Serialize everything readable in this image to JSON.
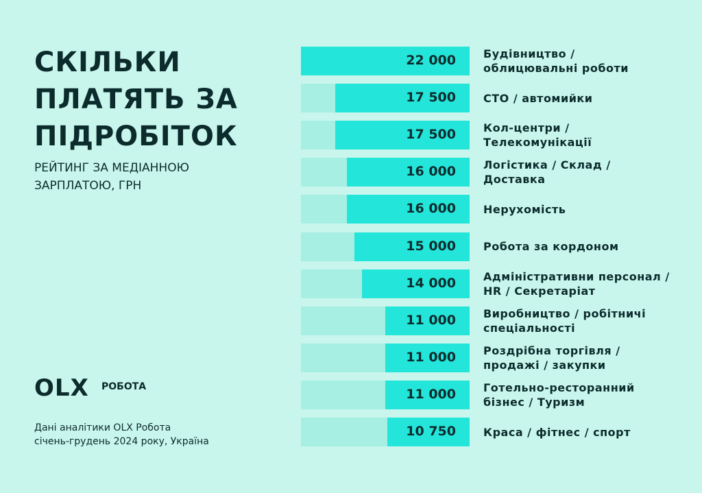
{
  "chart_data": {
    "type": "bar",
    "orientation": "horizontal",
    "title": "СКІЛЬКИ ПЛАТЯТЬ ЗА ПІДРОБІТОК",
    "subtitle": "РЕЙТИНГ ЗА МЕДІАННОЮ ЗАРПЛАТОЮ, ГРН",
    "logo": "OLX",
    "logo_text": "РОБОТА",
    "source": "Дані аналітики OLX Робота\nсічень-грудень 2024 року, Україна",
    "categories": [
      "Будівництво /\nоблицювальні роботи",
      "СТО / автомийки",
      "Кол-центри /\nТелекомунікації",
      "Логістика / Склад /\nДоставка",
      "Нерухомість",
      "Робота за кордоном",
      "Адміністративни персонал /\nHR / Секретаріат",
      "Виробництво / робітничі\nспеціальності",
      "Роздрібна торгівля /\nпродажі / закупки",
      "Готельно-ресторанний\nбізнес / Туризм",
      "Краса / фітнес / спорт"
    ],
    "values": [
      22000,
      17500,
      17500,
      16000,
      16000,
      15000,
      14000,
      11000,
      11000,
      11000,
      10750
    ],
    "value_labels": [
      "22 000",
      "17 500",
      "17 500",
      "16 000",
      "16 000",
      "15 000",
      "14 000",
      "11 000",
      "11 000",
      "11 000",
      "10 750"
    ],
    "color": "#24e5da",
    "xlim": [
      0,
      22000
    ]
  }
}
